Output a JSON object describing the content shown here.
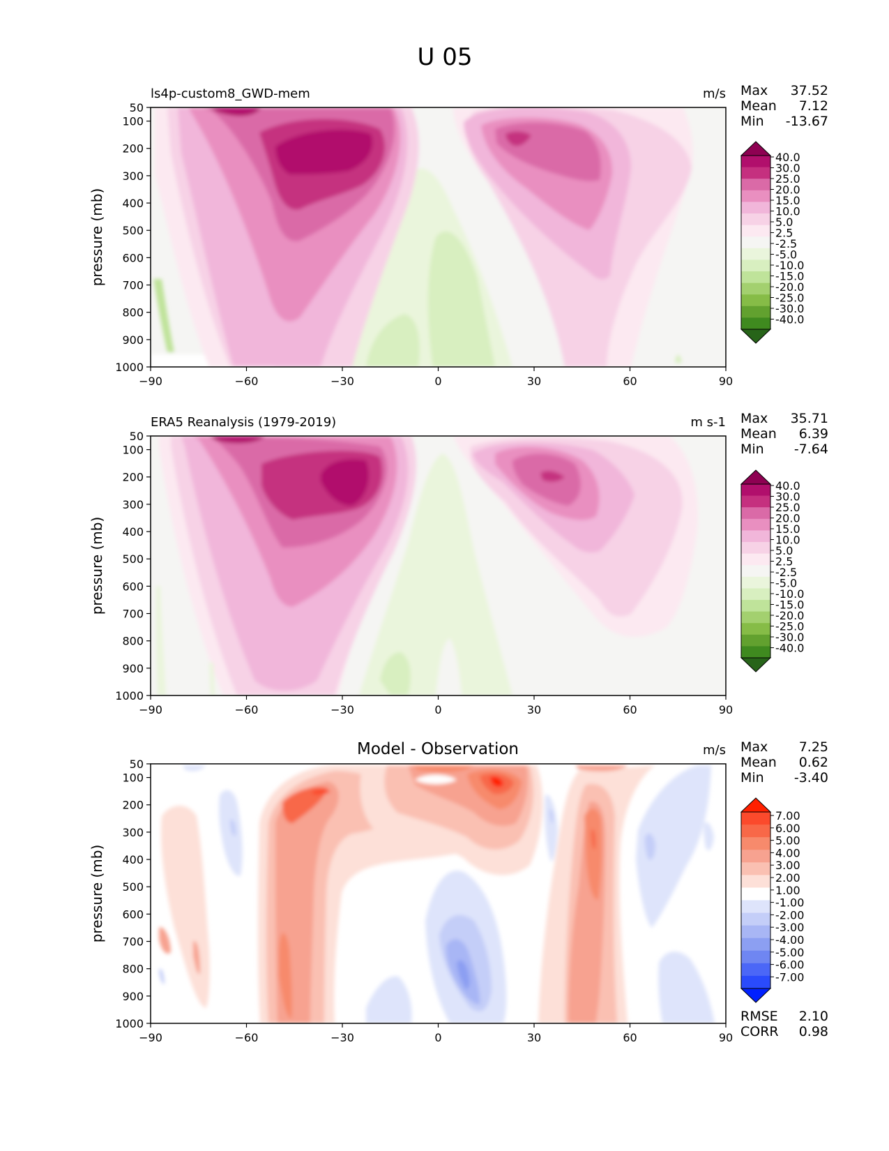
{
  "figure_title": "U 05",
  "stat_labels": {
    "max": "Max",
    "mean": "Mean",
    "min": "Min",
    "rmse": "RMSE",
    "corr": "CORR"
  },
  "chart_data": [
    {
      "type": "heatmap",
      "title": "ls4p-custom8_GWD-mem",
      "units": "m/s",
      "xlabel": "",
      "ylabel": "pressure (mb)",
      "xlim": [
        -90,
        90
      ],
      "ylim": [
        1000,
        50
      ],
      "x_ticks": [
        "−90",
        "−60",
        "−30",
        "0",
        "30",
        "60",
        "90"
      ],
      "y_ticks": [
        "50",
        "100",
        "200",
        "300",
        "400",
        "500",
        "600",
        "700",
        "800",
        "900",
        "1000"
      ],
      "stats": {
        "max": "37.52",
        "mean": "7.12",
        "min": "-13.67"
      },
      "colorbar": {
        "labels": [
          "40.0",
          "30.0",
          "25.0",
          "20.0",
          "15.0",
          "10.0",
          "5.0",
          "2.5",
          "-2.5",
          "-5.0",
          "-10.0",
          "-15.0",
          "-20.0",
          "-25.0",
          "-30.0",
          "-40.0"
        ],
        "colors": [
          "#8e0152",
          "#b10f6c",
          "#c5307f",
          "#da6aa7",
          "#e98fc0",
          "#f1b6da",
          "#f7d2e6",
          "#fce9f1",
          "#f5f5f3",
          "#eaf5dc",
          "#d8efc0",
          "#bfe39a",
          "#a3d06f",
          "#86bc47",
          "#62a12f",
          "#3f8a1f",
          "#276419"
        ]
      },
      "features": [
        {
          "name": "southern-jet",
          "lat": -35,
          "p": 225,
          "value": 37.5
        },
        {
          "name": "northern-jet",
          "lat": 35,
          "p": 210,
          "value": 32
        },
        {
          "name": "tropical-easterlies",
          "lat": 0,
          "p": 700,
          "value": -8
        },
        {
          "name": "antarctic-surface-easterlies",
          "lat": -88,
          "p": 850,
          "value": -13.7
        }
      ]
    },
    {
      "type": "heatmap",
      "title": "ERA5 Reanalysis (1979-2019)",
      "units": "m s-1",
      "xlabel": "",
      "ylabel": "pressure (mb)",
      "xlim": [
        -90,
        90
      ],
      "ylim": [
        1000,
        50
      ],
      "x_ticks": [
        "−90",
        "−60",
        "−30",
        "0",
        "30",
        "60",
        "90"
      ],
      "y_ticks": [
        "50",
        "100",
        "200",
        "300",
        "400",
        "500",
        "600",
        "700",
        "800",
        "900",
        "1000"
      ],
      "stats": {
        "max": "35.71",
        "mean": "6.39",
        "min": "-7.64"
      },
      "colorbar": {
        "labels": [
          "40.0",
          "30.0",
          "25.0",
          "20.0",
          "15.0",
          "10.0",
          "5.0",
          "2.5",
          "-2.5",
          "-5.0",
          "-10.0",
          "-15.0",
          "-20.0",
          "-25.0",
          "-30.0",
          "-40.0"
        ],
        "colors": [
          "#8e0152",
          "#b10f6c",
          "#c5307f",
          "#da6aa7",
          "#e98fc0",
          "#f1b6da",
          "#f7d2e6",
          "#fce9f1",
          "#f5f5f3",
          "#eaf5dc",
          "#d8efc0",
          "#bfe39a",
          "#a3d06f",
          "#86bc47",
          "#62a12f",
          "#3f8a1f",
          "#276419"
        ]
      },
      "features": [
        {
          "name": "southern-jet",
          "lat": -30,
          "p": 200,
          "value": 35.7
        },
        {
          "name": "northern-jet",
          "lat": 35,
          "p": 200,
          "value": 31
        },
        {
          "name": "tropical-easterlies",
          "lat": 0,
          "p": 600,
          "value": -6
        },
        {
          "name": "tropical-surface-easterlies",
          "lat": -13,
          "p": 920,
          "value": -7.6
        }
      ]
    },
    {
      "type": "heatmap",
      "title": "Model - Observation",
      "units": "m/s",
      "xlabel": "",
      "ylabel": "pressure (mb)",
      "xlim": [
        -90,
        90
      ],
      "ylim": [
        1000,
        50
      ],
      "x_ticks": [
        "−90",
        "−60",
        "−30",
        "0",
        "30",
        "60",
        "90"
      ],
      "y_ticks": [
        "50",
        "100",
        "200",
        "300",
        "400",
        "500",
        "600",
        "700",
        "800",
        "900",
        "1000"
      ],
      "stats": {
        "max": "7.25",
        "mean": "0.62",
        "min": "-3.40"
      },
      "extra_stats": {
        "rmse": "2.10",
        "corr": "0.98"
      },
      "colorbar": {
        "labels": [
          "7.00",
          "6.00",
          "5.00",
          "4.00",
          "3.00",
          "2.00",
          "1.00",
          "-1.00",
          "-2.00",
          "-3.00",
          "-4.00",
          "-5.00",
          "-6.00",
          "-7.00"
        ],
        "colors": [
          "#ff2000",
          "#fb4a2c",
          "#f86848",
          "#f78a6c",
          "#f7a290",
          "#fac0b2",
          "#fde0d8",
          "#ffffff",
          "#dee4fb",
          "#c4cef8",
          "#a8b6f5",
          "#8c9ff2",
          "#6f86f2",
          "#4b67f7",
          "#2a4bfc",
          "#0020ff"
        ]
      },
      "features": [
        {
          "name": "subtropical-jet-difference",
          "lat": 20,
          "p": 100,
          "value": 7.25
        },
        {
          "name": "southern-midlatitude-column",
          "lat": -45,
          "p": 600,
          "value": 4
        },
        {
          "name": "northern-midlatitude-column",
          "lat": 48,
          "p": 350,
          "value": 4.5
        },
        {
          "name": "tropical-negative",
          "lat": 10,
          "p": 800,
          "value": -3.4
        }
      ]
    }
  ]
}
